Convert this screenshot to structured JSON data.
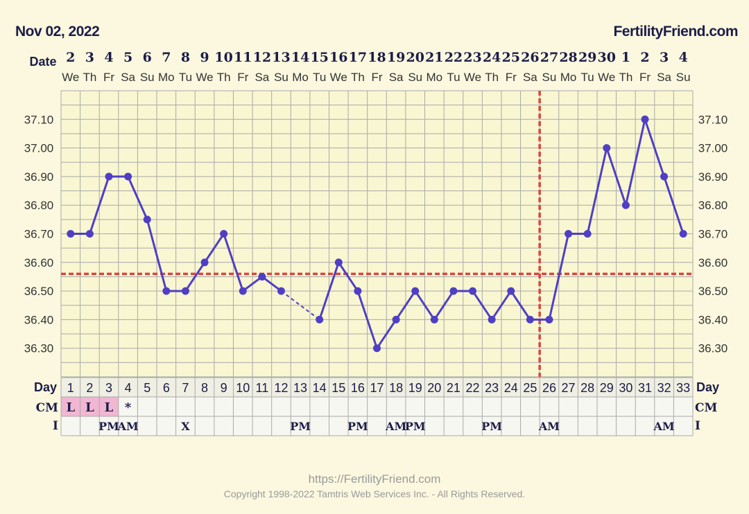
{
  "header": {
    "date_label": "Nov 02, 2022",
    "site_name": "FertilityFriend.com"
  },
  "footer": {
    "url": "https://FertilityFriend.com",
    "copyright": "Copyright 1998-2022 Tamtris Web Services Inc. - All Rights Reserved."
  },
  "colors": {
    "background": "#fbf8df",
    "plot_background": "#f9f6d2",
    "grid": "#a9a9a9",
    "temperature_line": "#4f3fc4",
    "coverline": "#d9453f",
    "cm_fill": "#f1b6d2"
  },
  "chart_data": {
    "type": "line",
    "row_labels": {
      "date": "Date",
      "day": "Day",
      "cm": "CM",
      "intercourse": "I"
    },
    "dates": [
      "2",
      "3",
      "4",
      "5",
      "6",
      "7",
      "8",
      "9",
      "10",
      "11",
      "12",
      "13",
      "14",
      "15",
      "16",
      "17",
      "18",
      "19",
      "20",
      "21",
      "22",
      "23",
      "24",
      "25",
      "26",
      "27",
      "28",
      "29",
      "30",
      "1",
      "2",
      "3",
      "4"
    ],
    "weekdays": [
      "We",
      "Th",
      "Fr",
      "Sa",
      "Su",
      "Mo",
      "Tu",
      "We",
      "Th",
      "Fr",
      "Sa",
      "Su",
      "Mo",
      "Tu",
      "We",
      "Th",
      "Fr",
      "Sa",
      "Su",
      "Mo",
      "Tu",
      "We",
      "Th",
      "Fr",
      "Sa",
      "Su",
      "Mo",
      "Tu",
      "We",
      "Th",
      "Fr",
      "Sa",
      "Su"
    ],
    "cycle_days": [
      "1",
      "2",
      "3",
      "4",
      "5",
      "6",
      "7",
      "8",
      "9",
      "10",
      "11",
      "12",
      "13",
      "14",
      "15",
      "16",
      "17",
      "18",
      "19",
      "20",
      "21",
      "22",
      "23",
      "24",
      "25",
      "26",
      "27",
      "28",
      "29",
      "30",
      "31",
      "32",
      "33"
    ],
    "temperatures": [
      36.7,
      36.7,
      36.9,
      36.9,
      36.75,
      36.5,
      36.5,
      36.6,
      36.7,
      36.5,
      36.55,
      36.5,
      null,
      36.4,
      36.6,
      36.5,
      36.3,
      36.4,
      36.5,
      36.4,
      36.5,
      36.5,
      36.4,
      36.5,
      36.4,
      36.4,
      36.7,
      36.7,
      37.0,
      36.8,
      37.1,
      36.9,
      36.7
    ],
    "dashed_segments": [
      [
        12,
        14
      ]
    ],
    "y_ticks": [
      "37.10",
      "37.00",
      "36.90",
      "36.80",
      "36.70",
      "36.60",
      "36.50",
      "36.40",
      "36.30"
    ],
    "ylim": [
      36.2,
      37.2
    ],
    "coverline": 36.56,
    "ovulation_day": 26,
    "cm": [
      "L",
      "L",
      "L",
      "*",
      "",
      "",
      "",
      "",
      "",
      "",
      "",
      "",
      "",
      "",
      "",
      "",
      "",
      "",
      "",
      "",
      "",
      "",
      "",
      "",
      "",
      "",
      "",
      "",
      "",
      "",
      "",
      "",
      ""
    ],
    "intercourse": [
      "",
      "",
      "PM",
      "AM",
      "",
      "",
      "X",
      "",
      "",
      "",
      "",
      "",
      "PM",
      "",
      "",
      "PM",
      "",
      "AM",
      "PM",
      "",
      "",
      "",
      "PM",
      "",
      "",
      "AM",
      "",
      "",
      "",
      "",
      "",
      "AM",
      ""
    ],
    "grid": true
  }
}
